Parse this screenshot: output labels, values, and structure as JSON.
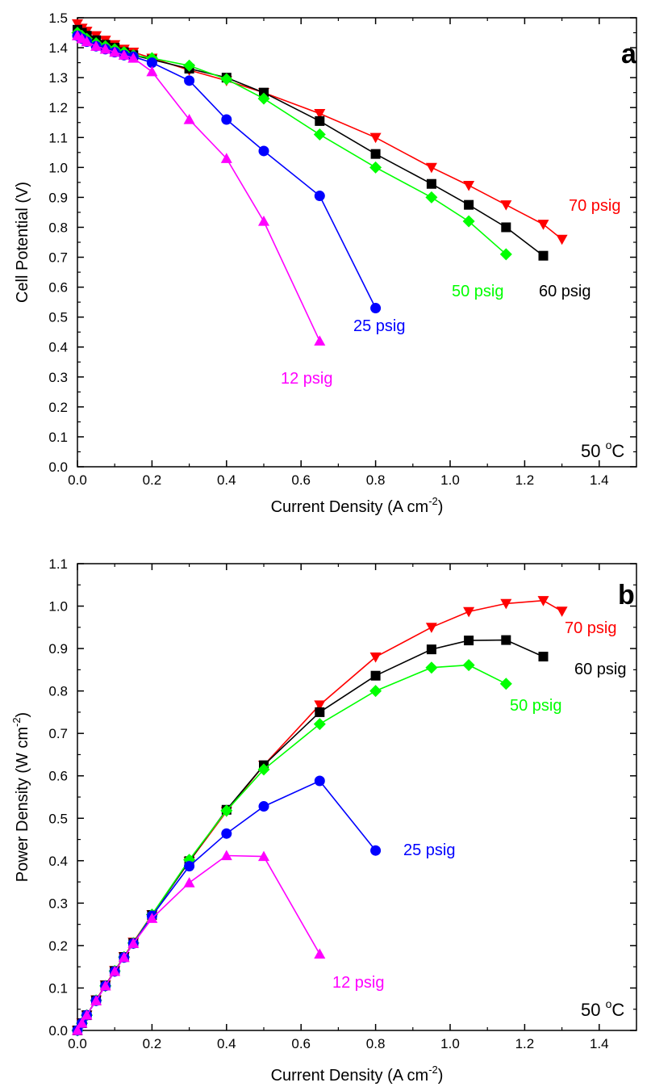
{
  "chart_data": [
    {
      "type": "line",
      "panel_label": "a",
      "xlabel": "Current Density (A cm",
      "xlabel_sup": "-2",
      "xlabel_end": ")",
      "ylabel": "Cell Potential (V)",
      "xlim": [
        0,
        1.5
      ],
      "ylim": [
        0,
        1.5
      ],
      "xticks": [
        "0.0",
        "0.2",
        "0.4",
        "0.6",
        "0.8",
        "1.0",
        "1.2",
        "1.4"
      ],
      "yticks": [
        "0.0",
        "0.1",
        "0.2",
        "0.3",
        "0.4",
        "0.5",
        "0.6",
        "0.7",
        "0.8",
        "0.9",
        "1.0",
        "1.1",
        "1.2",
        "1.3",
        "1.4",
        "1.5"
      ],
      "annotation": {
        "main": "50 ",
        "sup": "o",
        "end": "C"
      },
      "series": [
        {
          "name": "70 psig",
          "color": "#ff0000",
          "marker": "triangle-down",
          "x": [
            0.0,
            0.012,
            0.025,
            0.05,
            0.075,
            0.1,
            0.125,
            0.15,
            0.2,
            0.3,
            0.4,
            0.5,
            0.65,
            0.8,
            0.95,
            1.05,
            1.15,
            1.25,
            1.3
          ],
          "y": [
            1.48,
            1.465,
            1.455,
            1.44,
            1.425,
            1.41,
            1.395,
            1.385,
            1.365,
            1.325,
            1.29,
            1.25,
            1.18,
            1.1,
            1.0,
            0.94,
            0.875,
            0.81,
            0.76
          ]
        },
        {
          "name": "60 psig",
          "color": "#000000",
          "marker": "square",
          "x": [
            0.0,
            0.012,
            0.025,
            0.05,
            0.075,
            0.1,
            0.125,
            0.15,
            0.2,
            0.3,
            0.4,
            0.5,
            0.65,
            0.8,
            0.95,
            1.05,
            1.15,
            1.25
          ],
          "y": [
            1.46,
            1.45,
            1.44,
            1.425,
            1.41,
            1.4,
            1.385,
            1.375,
            1.36,
            1.33,
            1.3,
            1.25,
            1.155,
            1.045,
            0.945,
            0.875,
            0.8,
            0.705
          ]
        },
        {
          "name": "50 psig",
          "color": "#00ff00",
          "marker": "diamond",
          "x": [
            0.0,
            0.012,
            0.025,
            0.05,
            0.075,
            0.1,
            0.125,
            0.15,
            0.2,
            0.3,
            0.4,
            0.5,
            0.65,
            0.8,
            0.95,
            1.05,
            1.15
          ],
          "y": [
            1.45,
            1.44,
            1.43,
            1.415,
            1.405,
            1.395,
            1.385,
            1.375,
            1.365,
            1.34,
            1.295,
            1.23,
            1.11,
            1.0,
            0.9,
            0.82,
            0.71
          ]
        },
        {
          "name": "25 psig",
          "color": "#0000ff",
          "marker": "circle",
          "x": [
            0.0,
            0.012,
            0.025,
            0.05,
            0.075,
            0.1,
            0.125,
            0.15,
            0.2,
            0.3,
            0.4,
            0.5,
            0.65,
            0.8
          ],
          "y": [
            1.44,
            1.43,
            1.42,
            1.405,
            1.395,
            1.385,
            1.375,
            1.37,
            1.35,
            1.29,
            1.16,
            1.055,
            0.905,
            0.53
          ]
        },
        {
          "name": "12 psig",
          "color": "#ff00ff",
          "marker": "triangle-up",
          "x": [
            0.0,
            0.012,
            0.025,
            0.05,
            0.075,
            0.1,
            0.125,
            0.15,
            0.2,
            0.3,
            0.4,
            0.5,
            0.65
          ],
          "y": [
            1.44,
            1.43,
            1.42,
            1.405,
            1.395,
            1.385,
            1.375,
            1.365,
            1.32,
            1.16,
            1.03,
            0.82,
            0.42
          ]
        }
      ]
    },
    {
      "type": "line",
      "panel_label": "b",
      "xlabel": "Current Density (A cm",
      "xlabel_sup": "-2",
      "xlabel_end": ")",
      "ylabel": "Power Density (W cm",
      "ylabel_sup": "-2",
      "ylabel_end": ")",
      "xlim": [
        0,
        1.5
      ],
      "ylim": [
        0,
        1.1
      ],
      "xticks": [
        "0.0",
        "0.2",
        "0.4",
        "0.6",
        "0.8",
        "1.0",
        "1.2",
        "1.4"
      ],
      "yticks": [
        "0.0",
        "0.1",
        "0.2",
        "0.3",
        "0.4",
        "0.5",
        "0.6",
        "0.7",
        "0.8",
        "0.9",
        "1.0",
        "1.1"
      ],
      "annotation": {
        "main": "50 ",
        "sup": "o",
        "end": "C"
      },
      "series": [
        {
          "name": "70 psig",
          "color": "#ff0000",
          "marker": "triangle-down",
          "x": [
            0.0,
            0.012,
            0.025,
            0.05,
            0.075,
            0.1,
            0.125,
            0.15,
            0.2,
            0.3,
            0.4,
            0.5,
            0.65,
            0.8,
            0.95,
            1.05,
            1.15,
            1.25,
            1.3
          ],
          "y": [
            0.0,
            0.018,
            0.036,
            0.072,
            0.107,
            0.141,
            0.174,
            0.208,
            0.273,
            0.398,
            0.516,
            0.625,
            0.767,
            0.88,
            0.95,
            0.987,
            1.006,
            1.013,
            0.988
          ]
        },
        {
          "name": "60 psig",
          "color": "#000000",
          "marker": "square",
          "x": [
            0.0,
            0.012,
            0.025,
            0.05,
            0.075,
            0.1,
            0.125,
            0.15,
            0.2,
            0.3,
            0.4,
            0.5,
            0.65,
            0.8,
            0.95,
            1.05,
            1.15,
            1.25
          ],
          "y": [
            0.0,
            0.017,
            0.036,
            0.071,
            0.106,
            0.14,
            0.173,
            0.206,
            0.272,
            0.399,
            0.52,
            0.625,
            0.75,
            0.836,
            0.898,
            0.919,
            0.92,
            0.881
          ]
        },
        {
          "name": "50 psig",
          "color": "#00ff00",
          "marker": "diamond",
          "x": [
            0.0,
            0.012,
            0.025,
            0.05,
            0.075,
            0.1,
            0.125,
            0.15,
            0.2,
            0.3,
            0.4,
            0.5,
            0.65,
            0.8,
            0.95,
            1.05,
            1.15
          ],
          "y": [
            0.0,
            0.017,
            0.036,
            0.071,
            0.105,
            0.14,
            0.173,
            0.206,
            0.273,
            0.402,
            0.518,
            0.615,
            0.722,
            0.8,
            0.855,
            0.861,
            0.817
          ]
        },
        {
          "name": "25 psig",
          "color": "#0000ff",
          "marker": "circle",
          "x": [
            0.0,
            0.012,
            0.025,
            0.05,
            0.075,
            0.1,
            0.125,
            0.15,
            0.2,
            0.3,
            0.4,
            0.5,
            0.65,
            0.8
          ],
          "y": [
            0.0,
            0.017,
            0.036,
            0.07,
            0.105,
            0.139,
            0.172,
            0.205,
            0.27,
            0.387,
            0.464,
            0.528,
            0.588,
            0.424
          ]
        },
        {
          "name": "12 psig",
          "color": "#ff00ff",
          "marker": "triangle-up",
          "x": [
            0.0,
            0.012,
            0.025,
            0.05,
            0.075,
            0.1,
            0.125,
            0.15,
            0.2,
            0.3,
            0.4,
            0.5,
            0.65
          ],
          "y": [
            0.0,
            0.017,
            0.036,
            0.07,
            0.105,
            0.139,
            0.172,
            0.205,
            0.264,
            0.348,
            0.412,
            0.41,
            0.18
          ]
        }
      ]
    }
  ]
}
